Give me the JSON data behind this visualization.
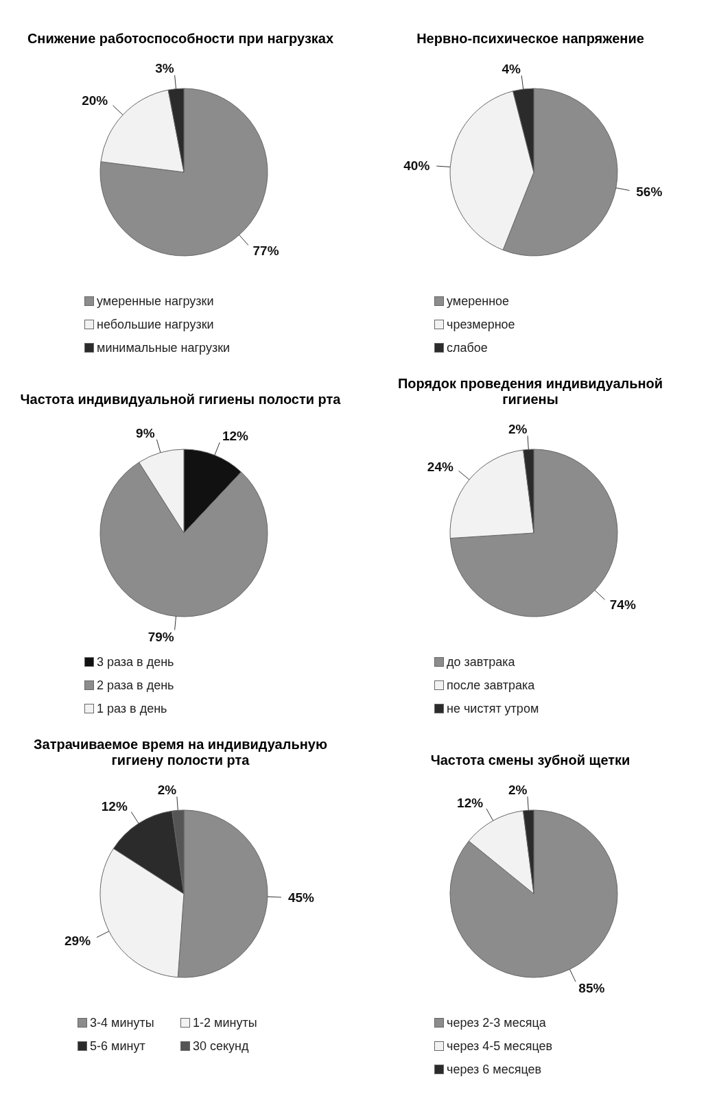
{
  "chart_data": [
    {
      "type": "pie",
      "title": "Снижение работоспособности  при нагрузках",
      "categories": [
        "умеренные нагрузки",
        "небольшие нагрузки",
        "минимальные нагрузки"
      ],
      "values": [
        77,
        20,
        3
      ],
      "colors": [
        "#8c8c8c",
        "#f2f2f2",
        "#2b2b2b"
      ],
      "value_labels": [
        "77%",
        "20%",
        "3%"
      ],
      "legend": "bottom"
    },
    {
      "type": "pie",
      "title": "Нервно-психическое напряжение",
      "categories": [
        "умеренное",
        "чрезмерное",
        "слабое"
      ],
      "values": [
        56,
        40,
        4
      ],
      "colors": [
        "#8c8c8c",
        "#f2f2f2",
        "#2b2b2b"
      ],
      "value_labels": [
        "56%",
        "40%",
        "4%"
      ],
      "legend": "bottom"
    },
    {
      "type": "pie",
      "title": "Частота индивидуальной гигиены полости рта",
      "categories": [
        "3 раза в день",
        "2 раза в день",
        "1 раз в день"
      ],
      "values": [
        12,
        79,
        9
      ],
      "colors": [
        "#111111",
        "#8c8c8c",
        "#f2f2f2"
      ],
      "value_labels": [
        "12%",
        "79%",
        "9%"
      ],
      "legend": "bottom"
    },
    {
      "type": "pie",
      "title": "Порядок проведения индивидуальной гигиены",
      "categories": [
        "до завтрака",
        "после завтрака",
        "не чистят утром"
      ],
      "values": [
        74,
        24,
        2
      ],
      "colors": [
        "#8c8c8c",
        "#f2f2f2",
        "#2b2b2b"
      ],
      "value_labels": [
        "74%",
        "24%",
        "2%"
      ],
      "legend": "bottom"
    },
    {
      "type": "pie",
      "title": "Затрачиваемое время на индивидуальную гигиену полости рта",
      "categories": [
        "3-4 минуты",
        "1-2 минуты",
        "5-6 минут",
        "30 секунд"
      ],
      "values": [
        45,
        29,
        12,
        2
      ],
      "colors": [
        "#8c8c8c",
        "#f2f2f2",
        "#2b2b2b",
        "#555555"
      ],
      "value_labels": [
        "45%",
        "29%",
        "12%",
        "2%"
      ],
      "legend": "bottom"
    },
    {
      "type": "pie",
      "title": "Частота смены зубной щетки",
      "categories": [
        "через 2-3 месяца",
        "через 4-5 месяцев",
        "через 6 месяцев"
      ],
      "values": [
        85,
        12,
        2
      ],
      "colors": [
        "#8c8c8c",
        "#f2f2f2",
        "#2b2b2b"
      ],
      "value_labels": [
        "85%",
        "12%",
        "2%"
      ],
      "legend": "bottom"
    }
  ]
}
